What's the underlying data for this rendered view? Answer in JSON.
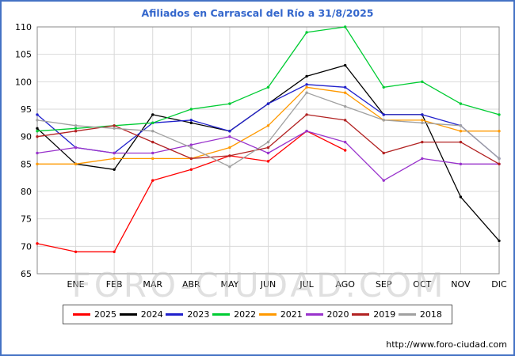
{
  "page": {
    "title": "Afiliados en Carrascal del Río a 31/8/2025",
    "watermark": "FORO-CIUDAD.COM",
    "footer_url": "http://www.foro-ciudad.com",
    "border_color": "#4472c4",
    "title_color": "#3366cc"
  },
  "chart_data": {
    "type": "line",
    "title": "Afiliados en Carrascal del Río a 31/8/2025",
    "xlabel": "",
    "ylabel": "",
    "ylim": [
      65,
      110
    ],
    "y_ticks": [
      65,
      70,
      75,
      80,
      85,
      90,
      95,
      100,
      105,
      110
    ],
    "x_labels": [
      "ENE",
      "FEB",
      "MAR",
      "ABR",
      "MAY",
      "JUN",
      "JUL",
      "AGO",
      "SEP",
      "OCT",
      "NOV",
      "DIC"
    ],
    "points_note": "13 x-positions: left axis start plus one point per month end; 2025 series ends in August",
    "grid": true,
    "legend_position": "bottom",
    "series": [
      {
        "name": "2025",
        "color": "#ff0000",
        "values": [
          70.5,
          69,
          69,
          82,
          84,
          86.5,
          85.5,
          91,
          87.5,
          null,
          null,
          null,
          null
        ]
      },
      {
        "name": "2024",
        "color": "#000000",
        "values": [
          91.5,
          85,
          84,
          94,
          92.5,
          91,
          96,
          101,
          103,
          94,
          94,
          79,
          71
        ]
      },
      {
        "name": "2023",
        "color": "#2020cc",
        "values": [
          94,
          88,
          87,
          92.5,
          93,
          91,
          96,
          99.5,
          99,
          94,
          94,
          92,
          86
        ]
      },
      {
        "name": "2022",
        "color": "#00cc33",
        "values": [
          91,
          91.5,
          92,
          92.5,
          95,
          96,
          99,
          109,
          110,
          99,
          100,
          96,
          94
        ]
      },
      {
        "name": "2021",
        "color": "#ff9900",
        "values": [
          85,
          85,
          86,
          86,
          86,
          88,
          92,
          99,
          98,
          93,
          93,
          91,
          91
        ]
      },
      {
        "name": "2020",
        "color": "#9933cc",
        "values": [
          87,
          88,
          87,
          87,
          88.5,
          90,
          87,
          91,
          89,
          82,
          86,
          85,
          85
        ]
      },
      {
        "name": "2019",
        "color": "#b22222",
        "values": [
          90,
          91,
          92,
          89,
          86,
          86.5,
          88,
          94,
          93,
          87,
          89,
          89,
          85
        ]
      },
      {
        "name": "2018",
        "color": "#a0a0a0",
        "values": [
          93,
          92,
          91.5,
          91,
          88,
          84.5,
          89,
          98,
          95.5,
          93,
          92.5,
          92,
          86
        ]
      }
    ]
  }
}
